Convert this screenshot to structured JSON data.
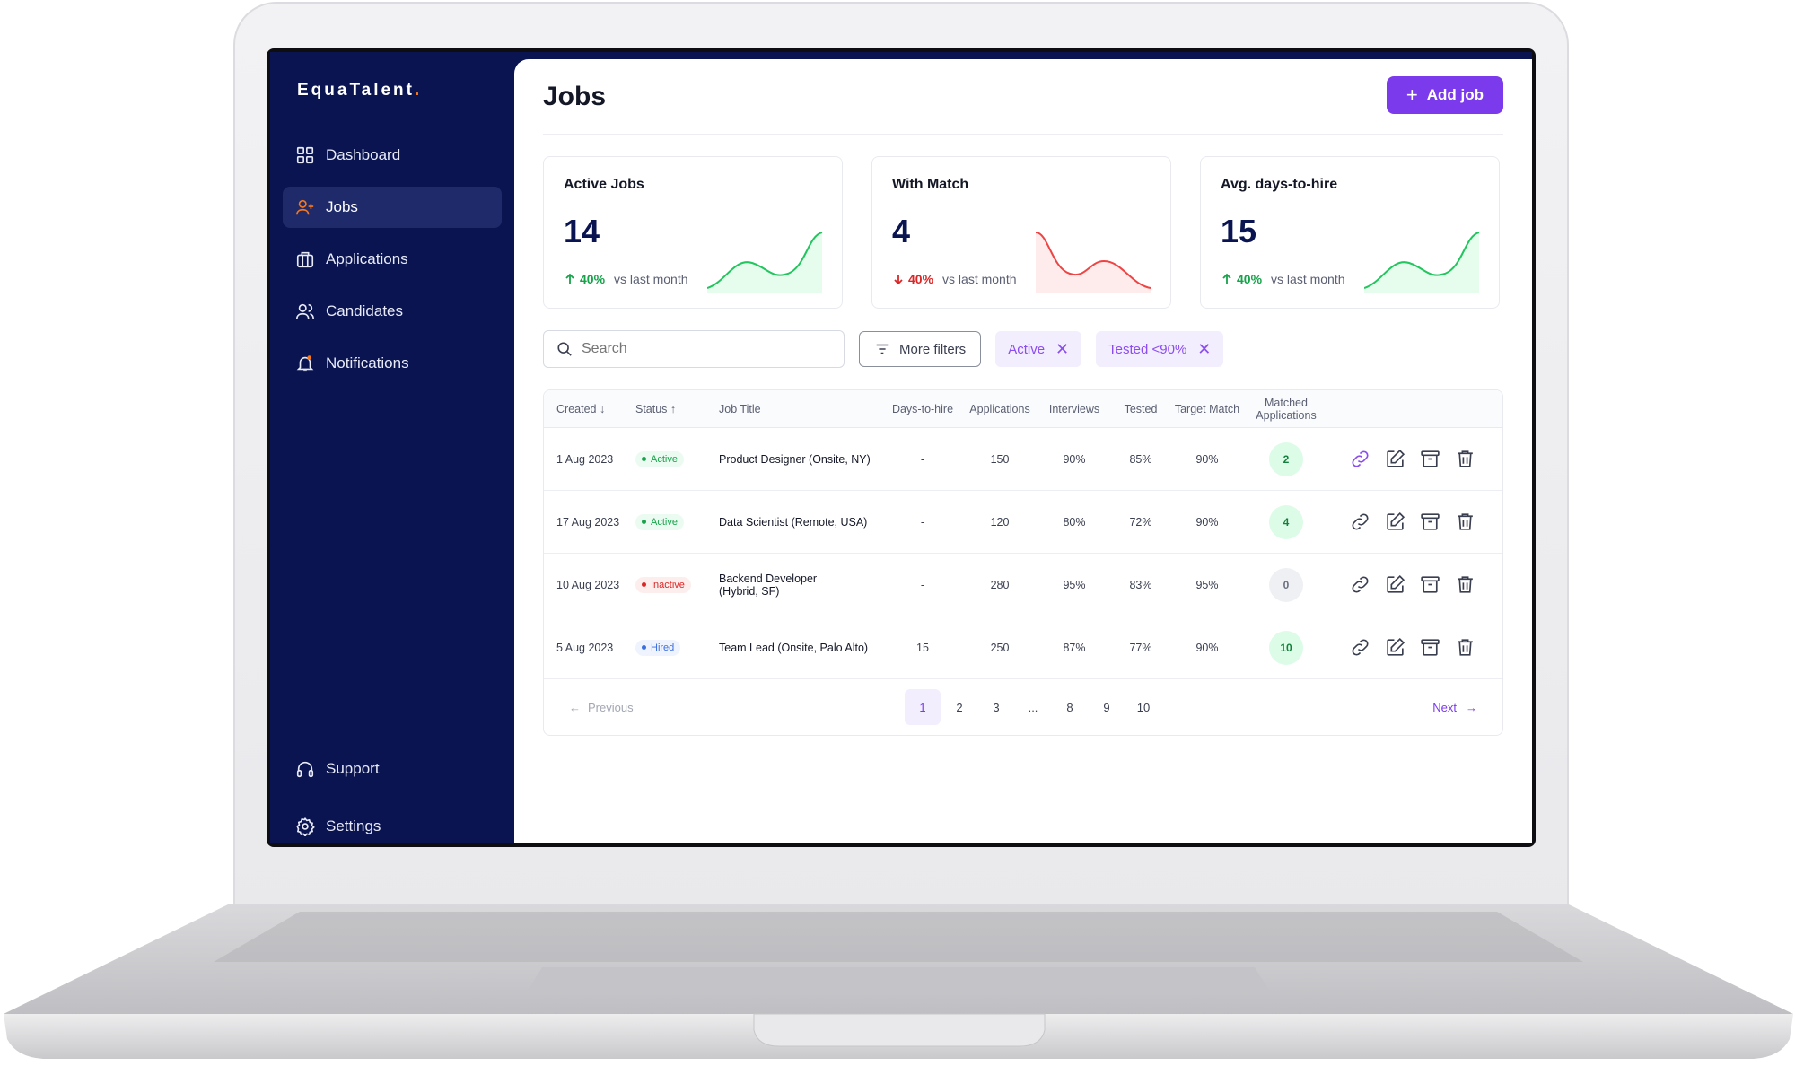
{
  "sidebar": {
    "logo": "EquaTalent",
    "logo_dot": ".",
    "items": [
      {
        "label": "Dashboard",
        "icon": "grid-icon"
      },
      {
        "label": "Jobs",
        "icon": "user-plus-icon"
      },
      {
        "label": "Applications",
        "icon": "briefcase-icon"
      },
      {
        "label": "Candidates",
        "icon": "users-icon"
      },
      {
        "label": "Notifications",
        "icon": "bell-icon"
      }
    ],
    "bottom_items": [
      {
        "label": "Support",
        "icon": "headphones-icon"
      },
      {
        "label": "Settings",
        "icon": "gear-icon"
      }
    ],
    "accent_color": "#f5781e"
  },
  "header": {
    "title": "Jobs",
    "add_button": "Add job",
    "add_button_plus": "+"
  },
  "stats": [
    {
      "title": "Active Jobs",
      "value": "14",
      "trend": "40%",
      "direction": "up",
      "note": "vs last month",
      "color": "#16a34a"
    },
    {
      "title": "With Match",
      "value": "4",
      "trend": "40%",
      "direction": "down",
      "note": "vs last month",
      "color": "#dc2626"
    },
    {
      "title": "Avg. days-to-hire",
      "value": "15",
      "trend": "40%",
      "direction": "up",
      "note": "vs last month",
      "color": "#16a34a"
    }
  ],
  "filters": {
    "search_placeholder": "Search",
    "more_filters": "More filters",
    "chips": [
      {
        "label": "Active",
        "close": "✕"
      },
      {
        "label": "Tested <90%",
        "close": "✕"
      }
    ]
  },
  "table": {
    "headers": {
      "created": "Created",
      "status": "Status",
      "job_title": "Job Title",
      "days": "Days-to-hire",
      "applications": "Applications",
      "interviews": "Interviews",
      "tested": "Tested",
      "target": "Target Match",
      "matched_line1": "Matched",
      "matched_line2": "Applications"
    },
    "rows": [
      {
        "created": "1 Aug 2023",
        "status": "Active",
        "title": "Product Designer (Onsite, NY)",
        "title2": "",
        "days": "-",
        "applications": "150",
        "interviews": "90%",
        "tested": "85%",
        "target": "90%",
        "matched": "2"
      },
      {
        "created": "17 Aug 2023",
        "status": "Active",
        "title": "Data Scientist (Remote, USA)",
        "title2": "",
        "days": "-",
        "applications": "120",
        "interviews": "80%",
        "tested": "72%",
        "target": "90%",
        "matched": "4"
      },
      {
        "created": "10 Aug 2023",
        "status": "Inactive",
        "title": "Backend Developer",
        "title2": "(Hybrid, SF)",
        "days": "-",
        "applications": "280",
        "interviews": "95%",
        "tested": "83%",
        "target": "95%",
        "matched": "0"
      },
      {
        "created": "5 Aug 2023",
        "status": "Hired",
        "title": "Team Lead (Onsite, Palo Alto)",
        "title2": "",
        "days": "15",
        "applications": "250",
        "interviews": "87%",
        "tested": "77%",
        "target": "90%",
        "matched": "10"
      }
    ]
  },
  "pagination": {
    "previous": "Previous",
    "next": "Next",
    "pages": [
      "1",
      "2",
      "3",
      "...",
      "8",
      "9",
      "10"
    ],
    "current": "1"
  },
  "colors": {
    "sidebar_bg": "#0a1451",
    "primary": "#7c3aed",
    "positive": "#16a34a",
    "negative": "#dc2626"
  }
}
